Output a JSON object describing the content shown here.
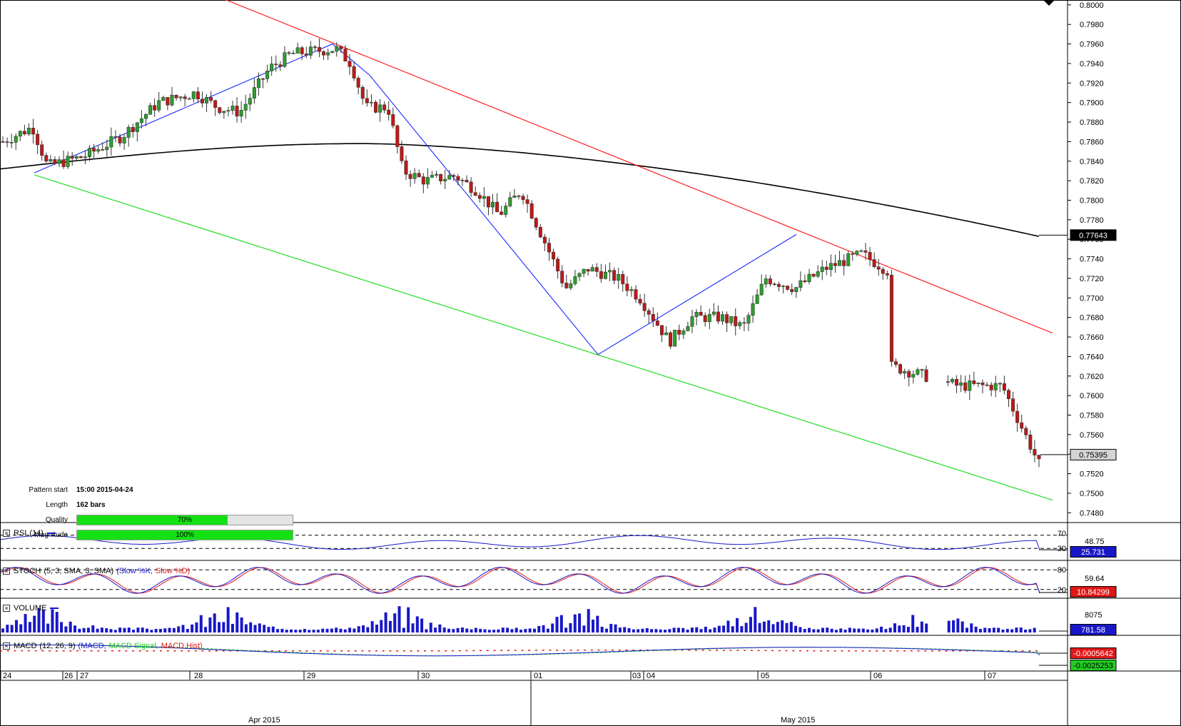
{
  "chart_data": {
    "type": "candlestick",
    "pair_note": "",
    "price_axis": {
      "min": 0.747,
      "max": 0.8005,
      "ticks": [
        "0.8000",
        "0.7980",
        "0.7960",
        "0.7940",
        "0.7920",
        "0.7900",
        "0.7880",
        "0.7860",
        "0.7840",
        "0.7820",
        "0.7800",
        "0.7780",
        "0.7760",
        "0.7740",
        "0.7720",
        "0.7700",
        "0.7680",
        "0.7660",
        "0.7640",
        "0.7620",
        "0.7600",
        "0.7580",
        "0.7560",
        "0.7540",
        "0.7520",
        "0.7500",
        "0.7480"
      ],
      "current_ma_label": "0.77643",
      "current_price_label": "0.75395"
    },
    "time_axis": {
      "day_labels": [
        "24",
        "26",
        "27",
        "28",
        "29",
        "30",
        "01",
        "03",
        "04",
        "05",
        "06",
        "07"
      ],
      "month_labels": [
        "Apr 2015",
        "May 2015"
      ]
    },
    "pattern_lines": {
      "resistance": [
        {
          "t": "2015-04-23",
          "p": 0.8013
        },
        {
          "t": "2015-05-07",
          "p": 0.7664
        }
      ],
      "support": [
        {
          "t": "2015-04-24",
          "p": 0.7826
        },
        {
          "t": "2015-05-07",
          "p": 0.7493
        }
      ],
      "zigzag": [
        0.7828,
        0.796,
        0.7642,
        0.7765
      ]
    },
    "info": {
      "pattern_start_label": "Pattern start",
      "pattern_start_value": "15:00 2015-04-24",
      "length_label": "Length",
      "length_value": "162 bars",
      "quality_label": "Quality",
      "quality_value": "70%",
      "quality_pct": 70,
      "magnitude_label": "Magnitude",
      "magnitude_value": "100%",
      "magnitude_pct": 100
    },
    "indicators": {
      "rsi": {
        "name": "RSI",
        "params": "(14)",
        "level_high": "70",
        "level_low": "30",
        "mid_value": "48.75",
        "current": "25.731"
      },
      "stoch": {
        "name": "STOCH",
        "params": "(5, 3, SMA, 3, SMA)",
        "k_label": "(Slow %K,",
        "d_label": "Slow %D)",
        "level_high": "80",
        "level_low": "20",
        "mid_value": "59.64",
        "current": "10.84299"
      },
      "volume": {
        "name": "VOLUME",
        "mid_value": "8075",
        "current": "781.58"
      },
      "macd": {
        "name": "MACD",
        "params": "(12, 26, 9)",
        "macd_label": "(MACD,",
        "signal_label": "MACD Signal,",
        "hist_label": "MACD Hist)",
        "hist_value": "-0.0005642",
        "macd_value": "-0.0025253"
      }
    },
    "colors": {
      "bull": "#2aa02a",
      "bear": "#c01818",
      "ma": "#000000",
      "resistance": "#ff2020",
      "support": "#22dd22",
      "zigzag": "#1a2aff",
      "indicator_blue": "#1818c8",
      "indicator_red": "#e01818",
      "indicator_green": "#22cc22"
    }
  }
}
